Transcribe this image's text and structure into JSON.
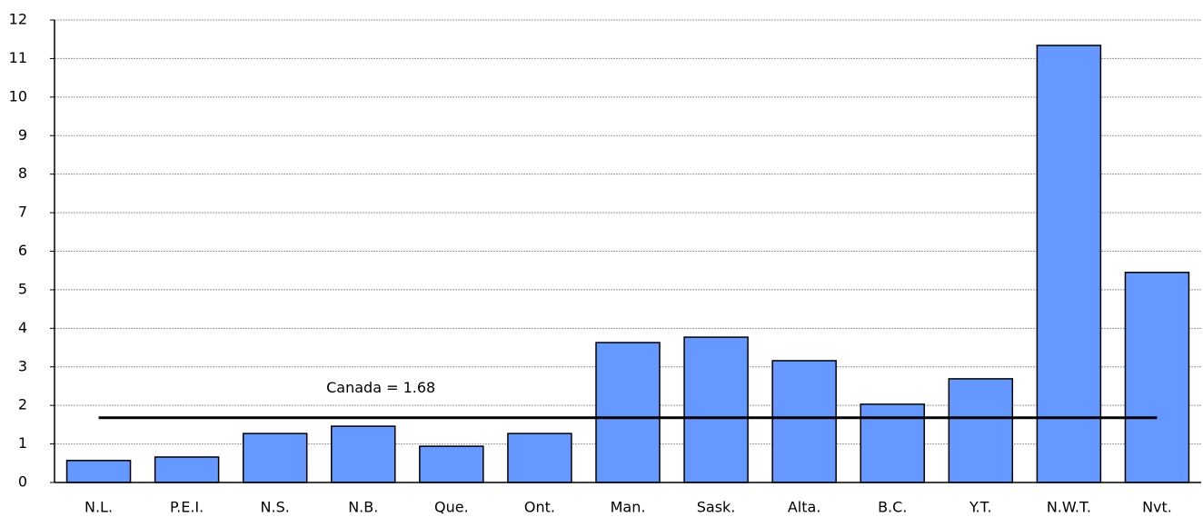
{
  "chart_data": {
    "type": "bar",
    "categories": [
      "N.L.",
      "P.E.I.",
      "N.S.",
      "N.B.",
      "Que.",
      "Ont.",
      "Man.",
      "Sask.",
      "Alta.",
      "B.C.",
      "Y.T.",
      "N.W.T.",
      "Nvt."
    ],
    "values": [
      0.57,
      0.66,
      1.27,
      1.46,
      0.94,
      1.27,
      3.63,
      3.77,
      3.16,
      2.03,
      2.69,
      11.34,
      5.45
    ],
    "color": "#6699ff",
    "ylim": [
      0,
      12
    ],
    "yticks": [
      0,
      1,
      2,
      3,
      4,
      5,
      6,
      7,
      8,
      9,
      10,
      11,
      12
    ],
    "grid": true,
    "reference_line": {
      "value": 1.68,
      "label": "Canada = 1.68",
      "color": "#000000"
    }
  }
}
